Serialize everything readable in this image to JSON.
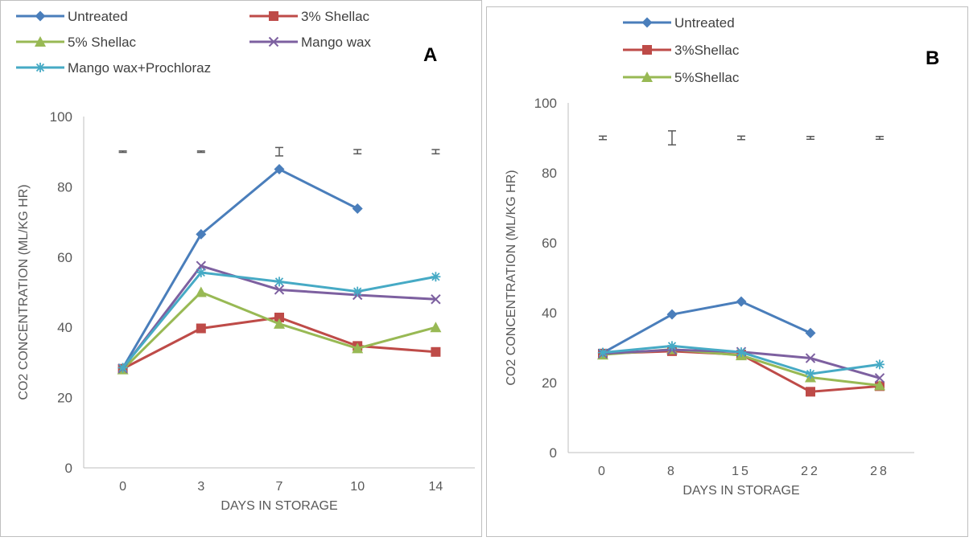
{
  "chart_data": [
    {
      "type": "line",
      "panel_label": "A",
      "xlabel": "DAYS IN STORAGE",
      "ylabel": "CO2 CONCENTRATION (ML/KG HR)",
      "categories": [
        "0",
        "3",
        "7",
        "10",
        "14"
      ],
      "ylim": [
        0,
        100
      ],
      "yticks": [
        0,
        20,
        40,
        60,
        80,
        100
      ],
      "legend_position": "top",
      "grid": false,
      "error_bars": {
        "y": 90,
        "half_widths": [
          0.2,
          0.2,
          1.2,
          0.6,
          0.6
        ]
      },
      "series": [
        {
          "name": "Untreated",
          "color": "#4a7ebb",
          "marker": "diamond",
          "values": [
            28.4,
            66.5,
            85.0,
            73.8,
            null
          ]
        },
        {
          "name": "3% Shellac",
          "color": "#be4b48",
          "marker": "square",
          "values": [
            28.2,
            39.7,
            42.8,
            34.7,
            33.0
          ]
        },
        {
          "name": "5% Shellac",
          "color": "#98b954",
          "marker": "triangle",
          "values": [
            28.0,
            50.0,
            41.0,
            34.0,
            40.0
          ]
        },
        {
          "name": "Mango wax",
          "color": "#7d60a0",
          "marker": "x",
          "values": [
            28.3,
            57.5,
            50.7,
            49.2,
            48.0
          ]
        },
        {
          "name": "Mango wax+Prochloraz",
          "color": "#46aac5",
          "marker": "star",
          "values": [
            28.5,
            55.6,
            53.0,
            50.2,
            54.4
          ]
        }
      ]
    },
    {
      "type": "line",
      "panel_label": "B",
      "xlabel": "DAYS IN STORAGE",
      "ylabel": "CO2 CONCENTRATION (ML/KG HR)",
      "categories": [
        "0",
        "8",
        "15",
        "22",
        "28"
      ],
      "ylim": [
        0,
        100
      ],
      "yticks": [
        0,
        20,
        40,
        60,
        80,
        100
      ],
      "legend_position": "top",
      "grid": false,
      "error_bars": {
        "y": 90,
        "half_widths": [
          0.5,
          2.0,
          0.5,
          0.4,
          0.4
        ]
      },
      "series": [
        {
          "name": "Untreated",
          "color": "#4a7ebb",
          "marker": "diamond",
          "values": [
            28.5,
            39.5,
            43.2,
            34.2,
            null
          ]
        },
        {
          "name": "3%Shellac",
          "color": "#be4b48",
          "marker": "square",
          "values": [
            28.3,
            29.0,
            28.0,
            17.4,
            19.0
          ]
        },
        {
          "name": "5%Shellac",
          "color": "#98b954",
          "marker": "triangle",
          "values": [
            28.0,
            29.5,
            27.8,
            21.5,
            19.2
          ]
        },
        {
          "name": "",
          "color": "#7d60a0",
          "marker": "x",
          "values": [
            28.3,
            29.4,
            28.8,
            27.0,
            21.3
          ]
        },
        {
          "name": "",
          "color": "#46aac5",
          "marker": "star",
          "values": [
            28.6,
            30.5,
            28.7,
            22.5,
            25.2
          ]
        }
      ]
    }
  ]
}
